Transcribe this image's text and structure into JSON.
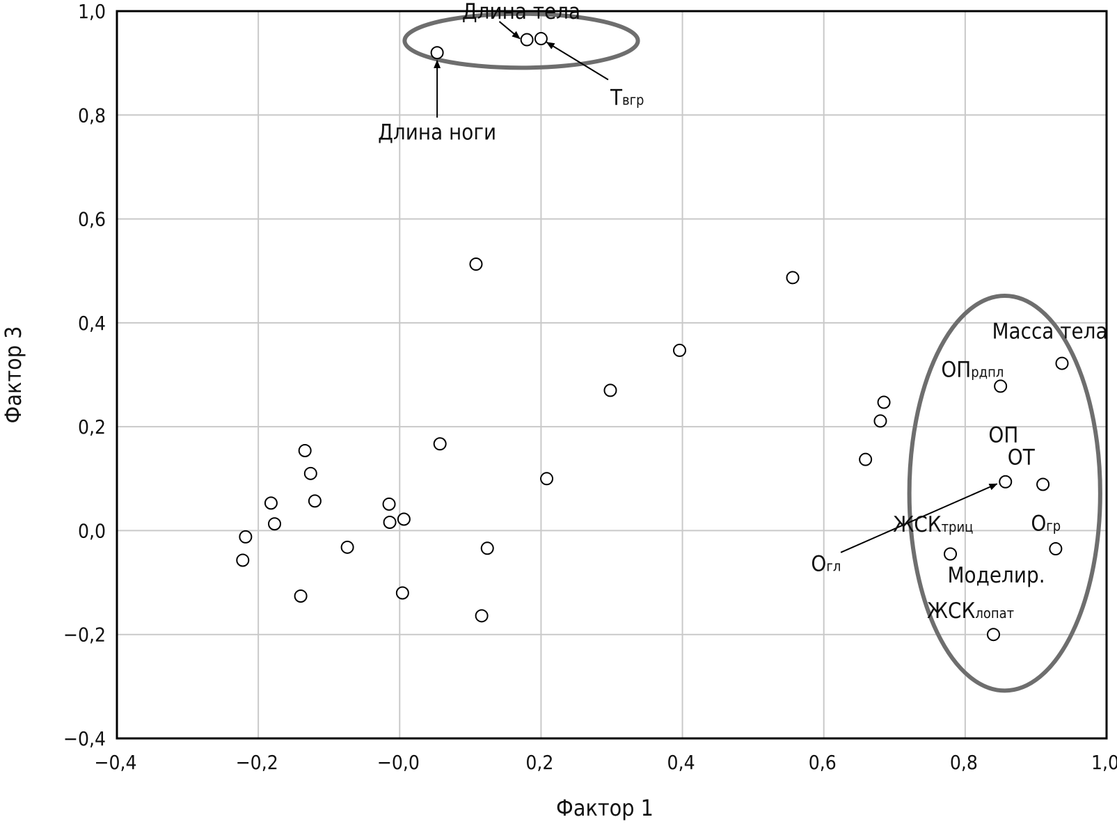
{
  "chart_data": {
    "type": "scatter",
    "title": "",
    "xlabel": "Фактор 1",
    "ylabel": "Фактор 3",
    "xlim": [
      -0.4,
      1.0
    ],
    "ylim": [
      -0.4,
      1.0
    ],
    "grid": true,
    "x_ticks": [
      "−0,4",
      "−0,2",
      "−0,0",
      "0,2",
      "0,4",
      "0,6",
      "0,8",
      "1,0"
    ],
    "y_ticks": [
      "1,0",
      "0,8",
      "0,6",
      "0,4",
      "0,2",
      "0,0",
      "−0,2",
      "−0,4"
    ],
    "points": [
      {
        "x": -0.222,
        "y": -0.057
      },
      {
        "x": -0.218,
        "y": -0.012
      },
      {
        "x": -0.182,
        "y": 0.053
      },
      {
        "x": -0.177,
        "y": 0.013
      },
      {
        "x": -0.14,
        "y": -0.126
      },
      {
        "x": -0.134,
        "y": 0.154
      },
      {
        "x": -0.126,
        "y": 0.11
      },
      {
        "x": -0.12,
        "y": 0.057
      },
      {
        "x": -0.074,
        "y": -0.032
      },
      {
        "x": -0.015,
        "y": 0.051
      },
      {
        "x": -0.014,
        "y": 0.016
      },
      {
        "x": 0.006,
        "y": 0.022
      },
      {
        "x": 0.004,
        "y": -0.12
      },
      {
        "x": 0.053,
        "y": 0.92
      },
      {
        "x": 0.057,
        "y": 0.167
      },
      {
        "x": 0.108,
        "y": 0.513
      },
      {
        "x": 0.116,
        "y": -0.164
      },
      {
        "x": 0.124,
        "y": -0.034
      },
      {
        "x": 0.18,
        "y": 0.945
      },
      {
        "x": 0.2,
        "y": 0.947
      },
      {
        "x": 0.208,
        "y": 0.1
      },
      {
        "x": 0.298,
        "y": 0.27
      },
      {
        "x": 0.396,
        "y": 0.347
      },
      {
        "x": 0.556,
        "y": 0.487
      },
      {
        "x": 0.659,
        "y": 0.137
      },
      {
        "x": 0.68,
        "y": 0.211
      },
      {
        "x": 0.685,
        "y": 0.247
      },
      {
        "x": 0.779,
        "y": -0.045
      },
      {
        "x": 0.84,
        "y": -0.2
      },
      {
        "x": 0.85,
        "y": 0.278
      },
      {
        "x": 0.857,
        "y": 0.094
      },
      {
        "x": 0.91,
        "y": 0.089
      },
      {
        "x": 0.928,
        "y": -0.035
      },
      {
        "x": 0.937,
        "y": 0.322
      }
    ],
    "annotations": [
      {
        "text": "Длина тела"
      },
      {
        "text": "Длина ноги"
      },
      {
        "text": "Т",
        "sub": "вгр"
      },
      {
        "text": "Масса тела"
      },
      {
        "text": "ОП",
        "sub": "рдпл"
      },
      {
        "text": "ОП"
      },
      {
        "text": "ОТ"
      },
      {
        "text": "ЖСК",
        "sub": "триц"
      },
      {
        "text": "О",
        "sub": "гр"
      },
      {
        "text": "О",
        "sub": "гл"
      },
      {
        "text": "Моделир."
      },
      {
        "text": "ЖСК",
        "sub": "лопат"
      }
    ],
    "groups": [
      {
        "members": [
          "Длина тела",
          "Длина ноги",
          "Твгр"
        ],
        "center": [
          0.172,
          0.943
        ],
        "rx": 0.165,
        "ry": 0.052
      },
      {
        "members": [
          "Масса тела",
          "ОПрдпл",
          "ОП",
          "ОТ",
          "ЖСКтриц",
          "Огр",
          "Моделир.",
          "ЖСКлопат"
        ],
        "center": [
          0.856,
          0.072
        ],
        "rx": 0.135,
        "ry": 0.38
      }
    ]
  }
}
